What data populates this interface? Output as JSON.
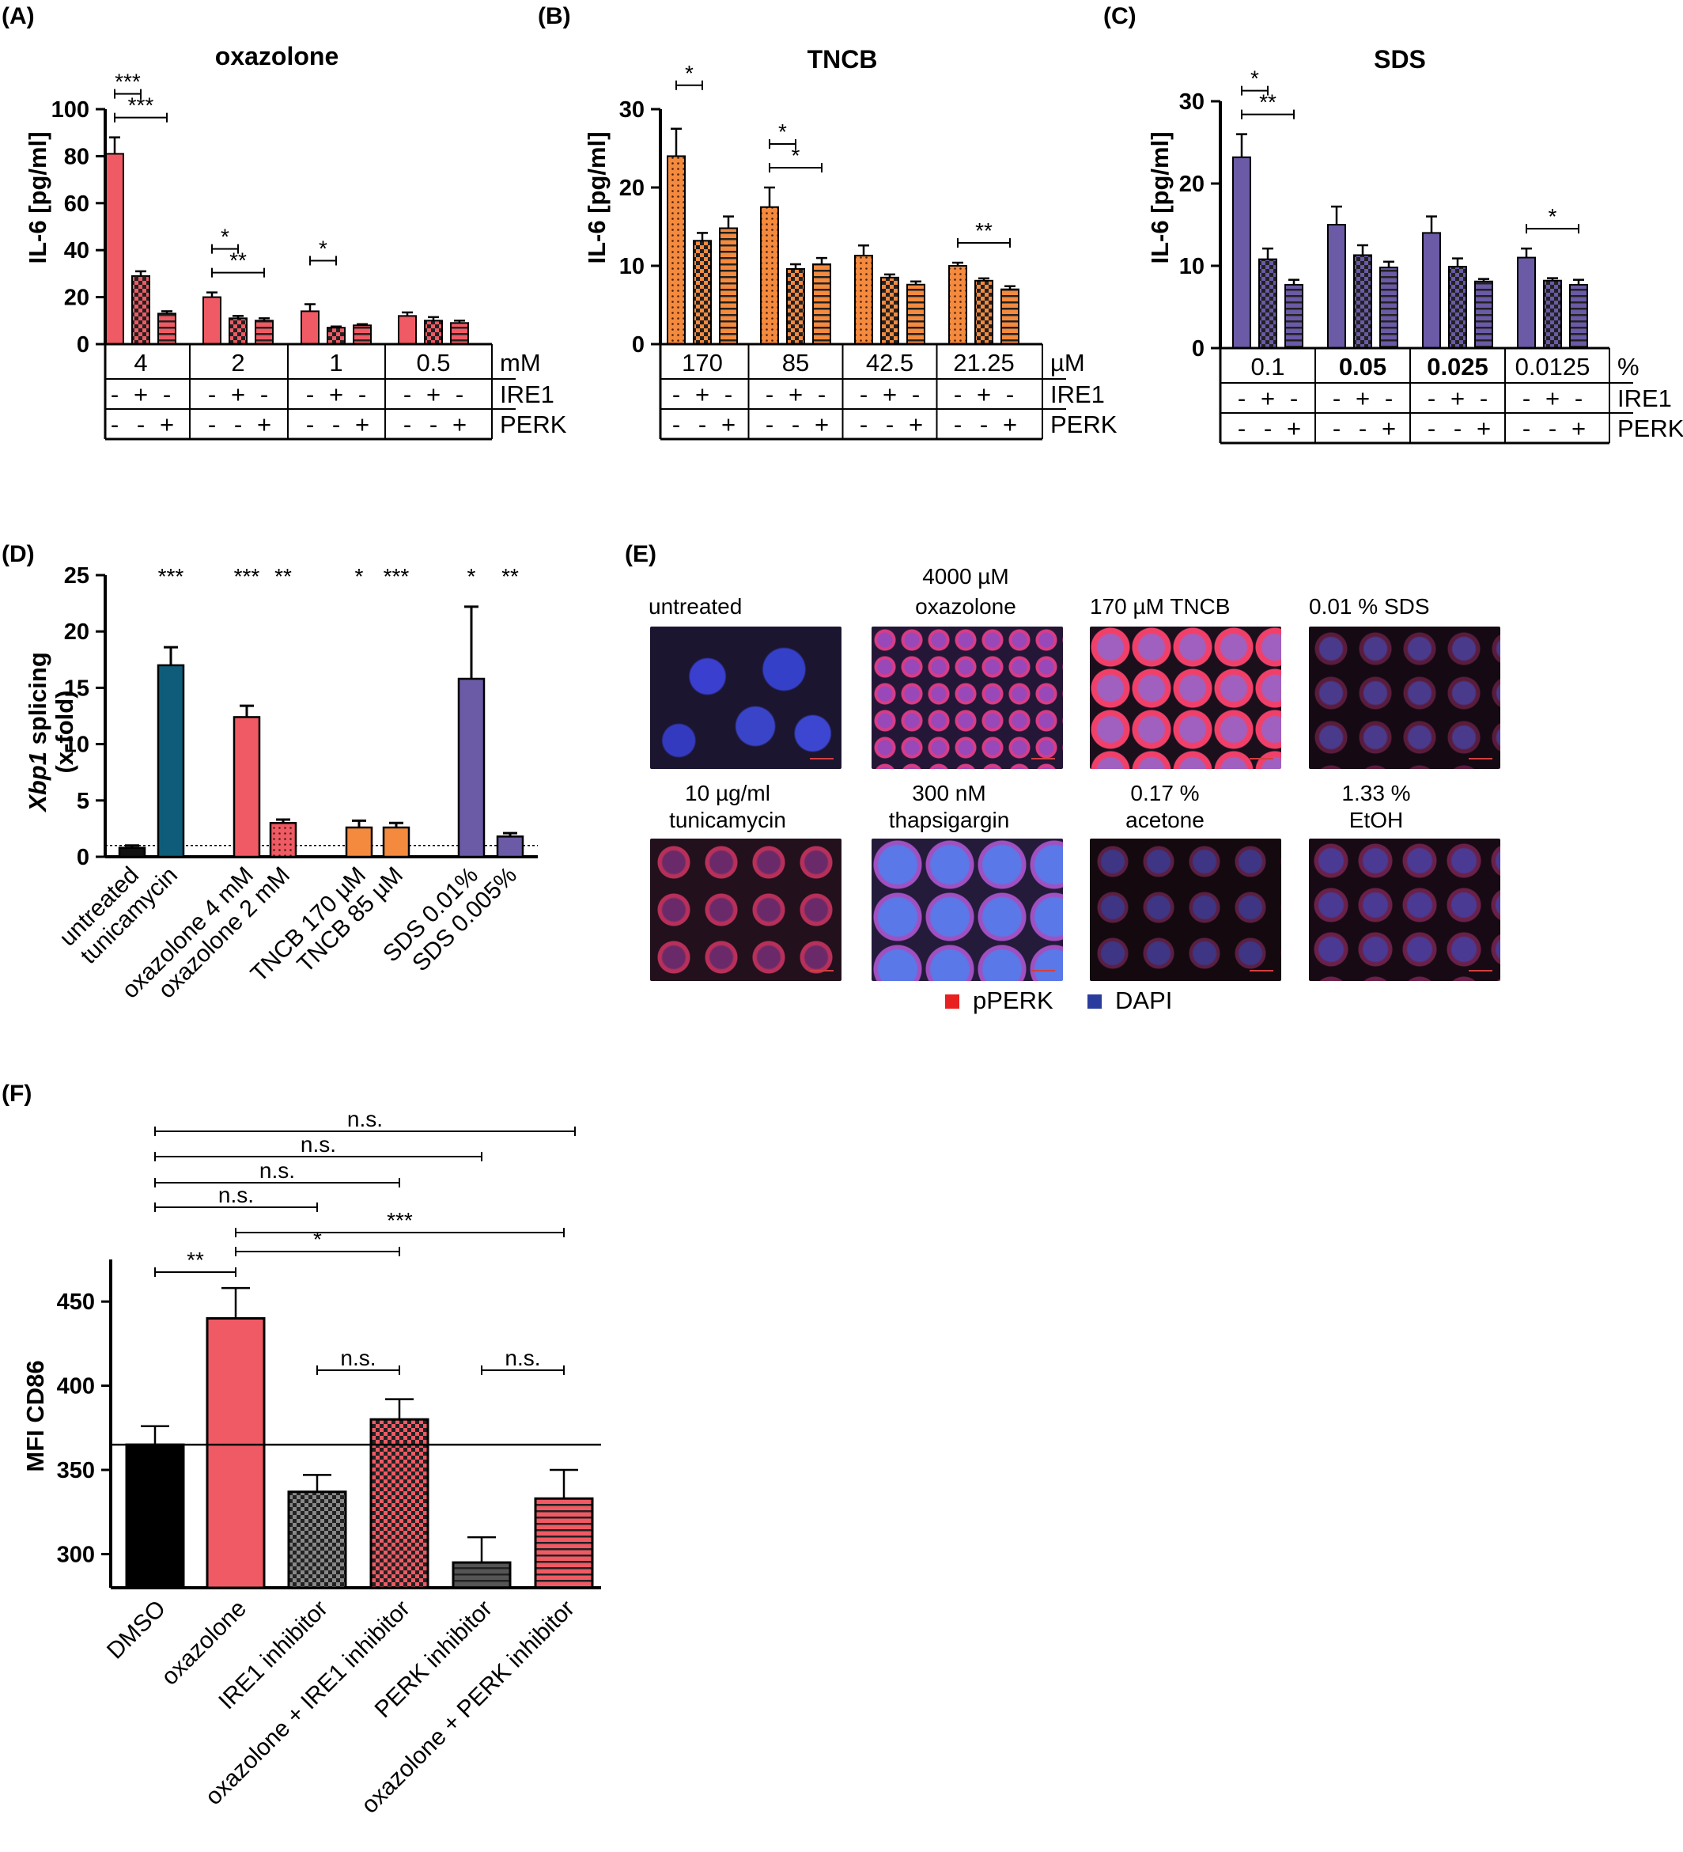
{
  "figure_labels": {
    "a": "(A)",
    "b": "(B)",
    "c": "(C)",
    "d": "(D)",
    "e": "(E)",
    "f": "(F)"
  },
  "colors": {
    "oxazolone": "#f05a64",
    "tncb": "#f48a3e",
    "sds": "#6b5aa6",
    "tunicamycin": "#0f5c7a",
    "untreated": "#111111",
    "dmso": "#000000",
    "inhibitor": "#888888",
    "ppPERK_legend": "#e82020",
    "dapi_legend": "#2a3c9c"
  },
  "chart_data": [
    {
      "id": "A",
      "type": "bar",
      "title": "oxazolone",
      "ylabel": "IL-6 [pg/ml]",
      "ylim": [
        0,
        100
      ],
      "yticks": [
        "0",
        "20",
        "40",
        "60",
        "80",
        "100"
      ],
      "unit": "mM",
      "groups": [
        "4",
        "2",
        "1",
        "0.5"
      ],
      "row_labels": [
        "IRE1",
        "PERK"
      ],
      "ire1_row": [
        "-",
        "+",
        "-"
      ],
      "perk_row": [
        "-",
        "-",
        "+"
      ],
      "series": [
        {
          "values": [
            81,
            20,
            14,
            12
          ],
          "errors": [
            7,
            2,
            3,
            1.5
          ]
        },
        {
          "values": [
            29,
            11,
            7,
            10
          ],
          "errors": [
            2,
            1,
            0.5,
            1.5
          ]
        },
        {
          "values": [
            13,
            10,
            8,
            9
          ],
          "errors": [
            1,
            1,
            0.5,
            1
          ]
        }
      ],
      "significance": [
        {
          "label": "***",
          "group": 0,
          "from": 0,
          "to": 1
        },
        {
          "label": "***",
          "group": 0,
          "from": 0,
          "to": 2
        },
        {
          "label": "*",
          "group": 1,
          "from": 0,
          "to": 1
        },
        {
          "label": "**",
          "group": 1,
          "from": 0,
          "to": 2
        },
        {
          "label": "*",
          "group": 2,
          "from": 0,
          "to": 1
        }
      ]
    },
    {
      "id": "B",
      "type": "bar",
      "title": "TNCB",
      "ylabel": "IL-6 [pg/ml]",
      "ylim": [
        0,
        30
      ],
      "yticks": [
        "0",
        "10",
        "20",
        "30"
      ],
      "unit": "µM",
      "groups": [
        "170",
        "85",
        "42.5",
        "21.25"
      ],
      "row_labels": [
        "IRE1",
        "PERK"
      ],
      "ire1_row": [
        "-",
        "+",
        "-"
      ],
      "perk_row": [
        "-",
        "-",
        "+"
      ],
      "series": [
        {
          "values": [
            24,
            17.5,
            11.3,
            10
          ],
          "errors": [
            3.5,
            2.5,
            1.3,
            0.4
          ]
        },
        {
          "values": [
            13.2,
            9.6,
            8.5,
            8.1
          ],
          "errors": [
            1,
            0.6,
            0.4,
            0.3
          ]
        },
        {
          "values": [
            14.8,
            10.2,
            7.6,
            7
          ],
          "errors": [
            1.5,
            0.8,
            0.4,
            0.4
          ]
        }
      ],
      "significance": [
        {
          "label": "*",
          "group": 0,
          "from": 0,
          "to": 1
        },
        {
          "label": "*",
          "group": 1,
          "from": 0,
          "to": 1
        },
        {
          "label": "*",
          "group": 1,
          "from": 0,
          "to": 2
        },
        {
          "label": "**",
          "group": 3,
          "from": 0,
          "to": 2
        }
      ]
    },
    {
      "id": "C",
      "type": "bar",
      "title": "SDS",
      "ylabel": "IL-6 [pg/ml]",
      "ylim": [
        0,
        30
      ],
      "yticks": [
        "0",
        "10",
        "20",
        "30"
      ],
      "unit": "%",
      "groups": [
        "0.1",
        "0.05",
        "0.025",
        "0.0125"
      ],
      "bold_groups": [
        false,
        true,
        true,
        false
      ],
      "row_labels": [
        "IRE1",
        "PERK"
      ],
      "ire1_row": [
        "-",
        "+",
        "-"
      ],
      "perk_row": [
        "-",
        "-",
        "+"
      ],
      "series": [
        {
          "values": [
            23.2,
            15,
            14,
            11
          ],
          "errors": [
            2.8,
            2.2,
            2,
            1.1
          ]
        },
        {
          "values": [
            10.8,
            11.3,
            9.9,
            8.2
          ],
          "errors": [
            1.3,
            1.2,
            1,
            0.3
          ]
        },
        {
          "values": [
            7.7,
            9.8,
            8.1,
            7.7
          ],
          "errors": [
            0.6,
            0.7,
            0.3,
            0.6
          ]
        }
      ],
      "significance": [
        {
          "label": "*",
          "group": 0,
          "from": 0,
          "to": 1
        },
        {
          "label": "**",
          "group": 0,
          "from": 0,
          "to": 2
        },
        {
          "label": "*",
          "group": 3,
          "from": 0,
          "to": 2
        }
      ]
    },
    {
      "id": "D",
      "type": "bar",
      "ylabel_italic": "Xbp1",
      "ylabel_rest": " splicing",
      "ylabel_line2": "(x-fold)",
      "ylim": [
        0,
        25
      ],
      "yticks": [
        "0",
        "5",
        "10",
        "15",
        "20",
        "25"
      ],
      "baseline": 1,
      "categories": [
        "untreated",
        "tunicamycin",
        "oxazolone 4 mM",
        "oxazolone 2 mM",
        "TNCB 170 µM",
        "TNCB 85 µM",
        "SDS 0.01%",
        "SDS 0.005%"
      ],
      "values": [
        0.8,
        17,
        12.4,
        3,
        2.6,
        2.6,
        15.8,
        1.8
      ],
      "errors": [
        0.2,
        1.6,
        1,
        0.3,
        0.6,
        0.4,
        6.4,
        0.3
      ],
      "significance": [
        "",
        "***",
        "***",
        "**",
        "*",
        "***",
        "*",
        "**"
      ]
    },
    {
      "id": "F",
      "type": "bar",
      "ylabel": "MFI CD86",
      "ylim": [
        280,
        475
      ],
      "yticks": [
        "300",
        "350",
        "400",
        "450"
      ],
      "reference_line": 365,
      "categories": [
        "DMSO",
        "oxazolone",
        "IRE1 inhibitor",
        "oxazolone + IRE1 inhibitor",
        "PERK inhibitor",
        "oxazolone + PERK inhibitor"
      ],
      "values": [
        365,
        440,
        337,
        380,
        295,
        333
      ],
      "errors": [
        11,
        18,
        10,
        12,
        15,
        17
      ],
      "significance": [
        {
          "label": "n.s.",
          "from": 0,
          "to": 5
        },
        {
          "label": "n.s.",
          "from": 0,
          "to": 4
        },
        {
          "label": "n.s.",
          "from": 0,
          "to": 3
        },
        {
          "label": "n.s.",
          "from": 0,
          "to": 2
        },
        {
          "label": "***",
          "from": 1,
          "to": 5
        },
        {
          "label": "*",
          "from": 1,
          "to": 3
        },
        {
          "label": "**",
          "from": 0,
          "to": 1
        },
        {
          "label": "n.s.",
          "from": 2,
          "to": 3
        },
        {
          "label": "n.s.",
          "from": 4,
          "to": 5
        }
      ]
    }
  ],
  "panel_e": {
    "row1": [
      {
        "label1": "",
        "label2": "untreated"
      },
      {
        "label1": "4000 µM",
        "label2": "oxazolone"
      },
      {
        "label1": "",
        "label2": "170 µM TNCB"
      },
      {
        "label1": "",
        "label2": "0.01 % SDS"
      }
    ],
    "row2": [
      {
        "label1": "10 µg/ml",
        "label2": "tunicamycin"
      },
      {
        "label1": "300 nM",
        "label2": "thapsigargin"
      },
      {
        "label1": "0.17 %",
        "label2": "acetone"
      },
      {
        "label1": "1.33 %",
        "label2": "EtOH"
      }
    ],
    "legend": [
      {
        "label": "pPERK"
      },
      {
        "label": "DAPI"
      }
    ]
  }
}
